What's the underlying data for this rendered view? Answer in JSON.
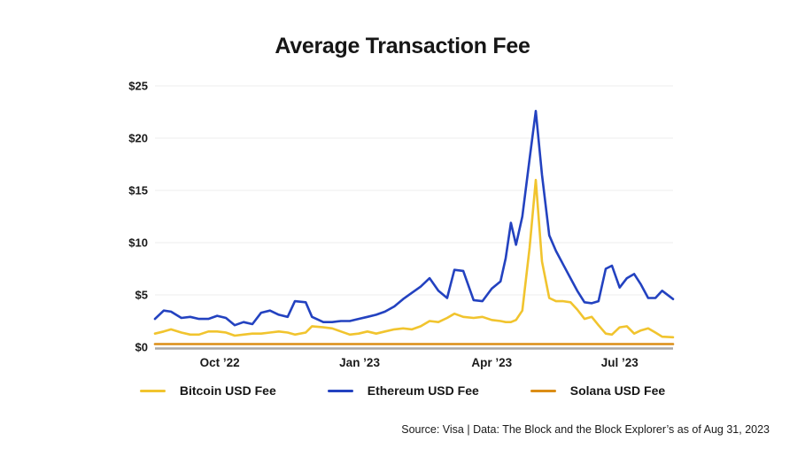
{
  "title": "Average Transaction Fee",
  "source_note": "Source: Visa | Data: The Block and the Block Explorer’s as of Aug 31, 2023",
  "colors": {
    "grid": "#ededed",
    "axis": "#a8a8a8",
    "text": "#1a1a1a"
  },
  "chart_data": {
    "type": "line",
    "title": "Average Transaction Fee",
    "xlabel": "",
    "ylabel": "",
    "ylim": [
      0,
      25
    ],
    "grid": "horizontal",
    "legend_position": "bottom",
    "y_ticks": [
      {
        "value": 0,
        "label": "$0"
      },
      {
        "value": 5,
        "label": "$5"
      },
      {
        "value": 10,
        "label": "$10"
      },
      {
        "value": 15,
        "label": "$15"
      },
      {
        "value": 20,
        "label": "$20"
      },
      {
        "value": 25,
        "label": "$25"
      }
    ],
    "x_ticks": [
      {
        "pos": 0.125,
        "label": "Oct ’22"
      },
      {
        "pos": 0.395,
        "label": "Jan ’23"
      },
      {
        "pos": 0.65,
        "label": "Apr ’23"
      },
      {
        "pos": 0.897,
        "label": "Jul ’23"
      }
    ],
    "x_range_note": "mid-Aug 2022 through Aug 31, 2023 (pos = fraction of x-axis)",
    "draw_order": [
      1,
      0,
      2
    ],
    "series": [
      {
        "name": "Bitcoin USD Fee",
        "color": "#f1c42e",
        "points": [
          [
            0,
            1.3
          ],
          [
            0.017,
            1.5
          ],
          [
            0.031,
            1.7
          ],
          [
            0.051,
            1.4
          ],
          [
            0.068,
            1.2
          ],
          [
            0.085,
            1.2
          ],
          [
            0.103,
            1.5
          ],
          [
            0.12,
            1.5
          ],
          [
            0.137,
            1.4
          ],
          [
            0.154,
            1.1
          ],
          [
            0.171,
            1.2
          ],
          [
            0.188,
            1.3
          ],
          [
            0.205,
            1.3
          ],
          [
            0.222,
            1.4
          ],
          [
            0.239,
            1.5
          ],
          [
            0.256,
            1.4
          ],
          [
            0.27,
            1.2
          ],
          [
            0.291,
            1.4
          ],
          [
            0.303,
            2.0
          ],
          [
            0.325,
            1.9
          ],
          [
            0.342,
            1.8
          ],
          [
            0.359,
            1.5
          ],
          [
            0.376,
            1.2
          ],
          [
            0.393,
            1.3
          ],
          [
            0.41,
            1.5
          ],
          [
            0.427,
            1.3
          ],
          [
            0.444,
            1.5
          ],
          [
            0.462,
            1.7
          ],
          [
            0.479,
            1.8
          ],
          [
            0.496,
            1.7
          ],
          [
            0.513,
            2.0
          ],
          [
            0.53,
            2.5
          ],
          [
            0.547,
            2.4
          ],
          [
            0.564,
            2.8
          ],
          [
            0.578,
            3.2
          ],
          [
            0.595,
            2.9
          ],
          [
            0.615,
            2.8
          ],
          [
            0.632,
            2.9
          ],
          [
            0.65,
            2.6
          ],
          [
            0.667,
            2.5
          ],
          [
            0.677,
            2.4
          ],
          [
            0.687,
            2.4
          ],
          [
            0.697,
            2.6
          ],
          [
            0.709,
            3.5
          ],
          [
            0.723,
            9.5
          ],
          [
            0.735,
            16.0
          ],
          [
            0.747,
            8.2
          ],
          [
            0.761,
            4.7
          ],
          [
            0.774,
            4.4
          ],
          [
            0.788,
            4.4
          ],
          [
            0.802,
            4.3
          ],
          [
            0.815,
            3.6
          ],
          [
            0.829,
            2.7
          ],
          [
            0.843,
            2.9
          ],
          [
            0.856,
            2.1
          ],
          [
            0.87,
            1.3
          ],
          [
            0.882,
            1.2
          ],
          [
            0.897,
            1.9
          ],
          [
            0.911,
            2.0
          ],
          [
            0.925,
            1.3
          ],
          [
            0.938,
            1.6
          ],
          [
            0.952,
            1.8
          ],
          [
            0.966,
            1.4
          ],
          [
            0.979,
            1.0
          ],
          [
            1,
            0.95
          ]
        ]
      },
      {
        "name": "Ethereum USD Fee",
        "color": "#2342c0",
        "points": [
          [
            0,
            2.7
          ],
          [
            0.017,
            3.5
          ],
          [
            0.031,
            3.4
          ],
          [
            0.051,
            2.8
          ],
          [
            0.068,
            2.9
          ],
          [
            0.085,
            2.7
          ],
          [
            0.103,
            2.7
          ],
          [
            0.12,
            3.0
          ],
          [
            0.137,
            2.8
          ],
          [
            0.154,
            2.1
          ],
          [
            0.171,
            2.4
          ],
          [
            0.188,
            2.2
          ],
          [
            0.205,
            3.3
          ],
          [
            0.222,
            3.5
          ],
          [
            0.239,
            3.1
          ],
          [
            0.256,
            2.9
          ],
          [
            0.27,
            4.4
          ],
          [
            0.291,
            4.3
          ],
          [
            0.303,
            2.9
          ],
          [
            0.325,
            2.4
          ],
          [
            0.342,
            2.4
          ],
          [
            0.359,
            2.5
          ],
          [
            0.376,
            2.5
          ],
          [
            0.393,
            2.7
          ],
          [
            0.41,
            2.9
          ],
          [
            0.427,
            3.1
          ],
          [
            0.444,
            3.4
          ],
          [
            0.462,
            3.9
          ],
          [
            0.479,
            4.6
          ],
          [
            0.496,
            5.2
          ],
          [
            0.513,
            5.8
          ],
          [
            0.53,
            6.6
          ],
          [
            0.547,
            5.4
          ],
          [
            0.564,
            4.7
          ],
          [
            0.578,
            7.4
          ],
          [
            0.595,
            7.3
          ],
          [
            0.615,
            4.5
          ],
          [
            0.632,
            4.4
          ],
          [
            0.65,
            5.6
          ],
          [
            0.667,
            6.3
          ],
          [
            0.677,
            8.5
          ],
          [
            0.687,
            11.9
          ],
          [
            0.697,
            9.8
          ],
          [
            0.709,
            12.5
          ],
          [
            0.723,
            18.0
          ],
          [
            0.735,
            22.6
          ],
          [
            0.747,
            16.5
          ],
          [
            0.761,
            10.7
          ],
          [
            0.774,
            9.2
          ],
          [
            0.788,
            7.9
          ],
          [
            0.802,
            6.6
          ],
          [
            0.815,
            5.4
          ],
          [
            0.829,
            4.3
          ],
          [
            0.843,
            4.2
          ],
          [
            0.856,
            4.4
          ],
          [
            0.87,
            7.5
          ],
          [
            0.882,
            7.8
          ],
          [
            0.897,
            5.7
          ],
          [
            0.911,
            6.6
          ],
          [
            0.925,
            7.0
          ],
          [
            0.938,
            6.0
          ],
          [
            0.952,
            4.7
          ],
          [
            0.966,
            4.7
          ],
          [
            0.979,
            5.4
          ],
          [
            1,
            4.6
          ]
        ]
      },
      {
        "name": "Solana USD Fee",
        "color": "#db8d16",
        "points": [
          [
            0,
            0.3
          ],
          [
            0.2,
            0.3
          ],
          [
            0.4,
            0.3
          ],
          [
            0.6,
            0.3
          ],
          [
            0.8,
            0.3
          ],
          [
            1,
            0.3
          ]
        ]
      }
    ]
  }
}
